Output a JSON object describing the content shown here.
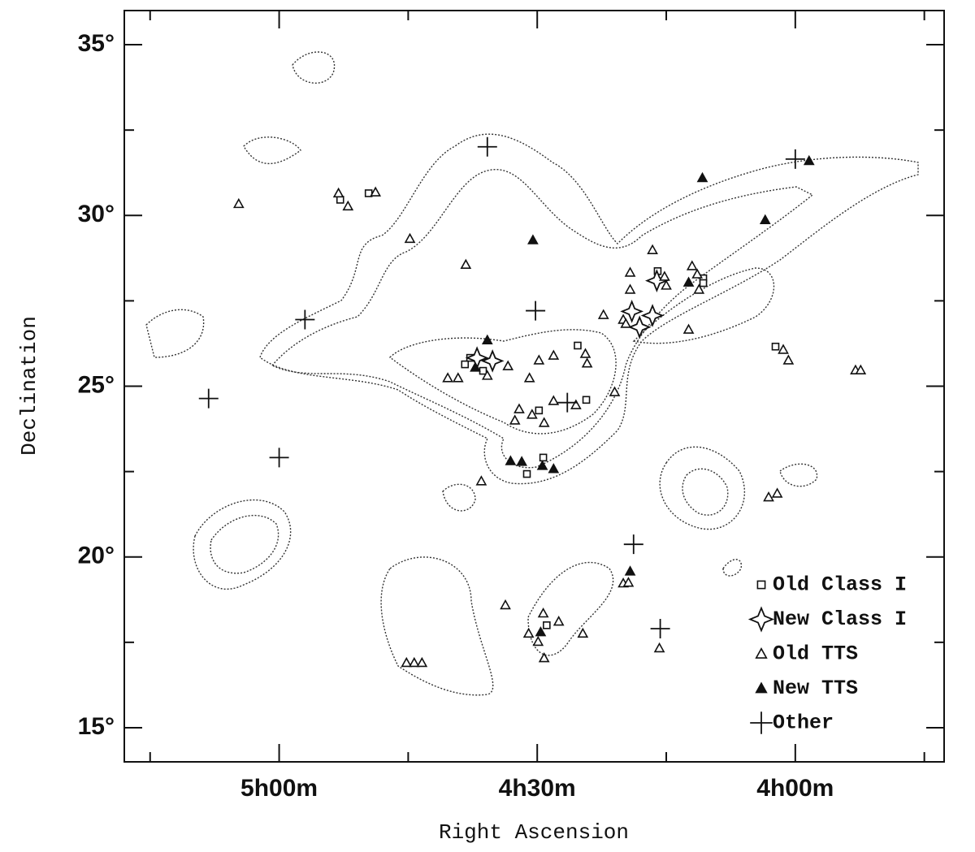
{
  "chart_data": {
    "type": "scatter",
    "x_label": "Right Ascension",
    "y_label": "Declination",
    "xlim": [
      318,
      222.7
    ],
    "ylim": [
      14,
      36
    ],
    "xticks": [
      {
        "value": 300,
        "label": "5h00m"
      },
      {
        "value": 270,
        "label": "4h30m"
      },
      {
        "value": 240,
        "label": "4h00m"
      }
    ],
    "xminorticks": [
      315,
      285,
      255,
      225
    ],
    "yticks": [
      {
        "value": 15,
        "label": "15°"
      },
      {
        "value": 20,
        "label": "20°"
      },
      {
        "value": 25,
        "label": "25°"
      },
      {
        "value": 30,
        "label": "30°"
      },
      {
        "value": 35,
        "label": "35°"
      }
    ],
    "yminorticks": [
      17.5,
      22.5,
      27.5,
      32.5
    ],
    "legend": "lower right",
    "series": [
      {
        "name": "Old Class I",
        "color": "#111111",
        "marker": "square",
        "x": [
          292.9,
          289.6,
          278.4,
          277.8,
          276.3,
          269.8,
          264.3,
          265.3,
          256.0,
          250.7,
          250.7,
          242.3,
          271.2,
          269.3,
          268.9
        ],
        "values": [
          30.46,
          30.65,
          25.64,
          25.83,
          25.45,
          24.29,
          24.6,
          26.19,
          28.37,
          28.16,
          28.02,
          26.16,
          22.43,
          22.91,
          18.0
        ]
      },
      {
        "name": "New Class I",
        "color": "#111111",
        "marker": "star",
        "x": [
          277.0,
          275.2,
          259.0,
          258.1,
          256.6,
          256.1
        ],
        "values": [
          25.83,
          25.74,
          27.19,
          26.73,
          27.07,
          28.09
        ]
      },
      {
        "name": "Old TTS",
        "color": "#111111",
        "marker": "triangle-open",
        "x": [
          304.7,
          293.1,
          292.0,
          288.8,
          284.8,
          278.3,
          280.4,
          279.2,
          276.5,
          275.8,
          273.4,
          272.6,
          272.1,
          270.9,
          270.6,
          269.8,
          268.1,
          269.2,
          268.1,
          265.5,
          264.4,
          264.2,
          261.0,
          262.3,
          259.2,
          259.2,
          256.6,
          260.0,
          259.7,
          255.2,
          255.0,
          252.0,
          251.4,
          251.2,
          252.4,
          241.4,
          240.8,
          243.1,
          242.1,
          233.0,
          232.4,
          273.7,
          271.0,
          269.9,
          269.3,
          269.2,
          267.5,
          264.7,
          260.0,
          259.4,
          255.8,
          285.2,
          284.3,
          283.4
        ],
        "values": [
          30.34,
          30.65,
          30.27,
          30.68,
          29.32,
          28.56,
          25.24,
          25.24,
          22.22,
          25.31,
          25.59,
          24.0,
          24.33,
          25.24,
          24.17,
          25.76,
          25.9,
          23.93,
          24.57,
          24.45,
          25.95,
          25.67,
          24.83,
          27.09,
          28.33,
          27.83,
          28.99,
          26.95,
          26.83,
          28.21,
          27.95,
          28.52,
          28.28,
          27.83,
          26.66,
          26.07,
          25.76,
          21.75,
          21.86,
          25.47,
          25.47,
          18.59,
          17.76,
          17.52,
          18.35,
          17.04,
          18.11,
          17.76,
          19.23,
          19.25,
          17.33,
          16.9,
          16.9,
          16.9
        ]
      },
      {
        "name": "New TTS",
        "color": "#111111",
        "marker": "triangle-filled",
        "x": [
          275.8,
          277.2,
          270.5,
          250.8,
          243.5,
          238.4,
          252.4,
          273.1,
          271.8,
          269.4,
          268.1,
          259.2,
          269.6
        ],
        "values": [
          26.35,
          25.55,
          29.28,
          31.1,
          29.87,
          31.6,
          28.04,
          22.81,
          22.79,
          22.67,
          22.58,
          19.58,
          17.8
        ]
      },
      {
        "name": "Other",
        "color": "#111111",
        "marker": "plus",
        "x": [
          297.0,
          275.8,
          270.2,
          266.5,
          258.8,
          255.7,
          240.0,
          308.2,
          300.0
        ],
        "values": [
          26.95,
          32.01,
          27.21,
          24.52,
          20.37,
          17.9,
          31.65,
          24.64,
          22.91
        ]
      }
    ]
  }
}
